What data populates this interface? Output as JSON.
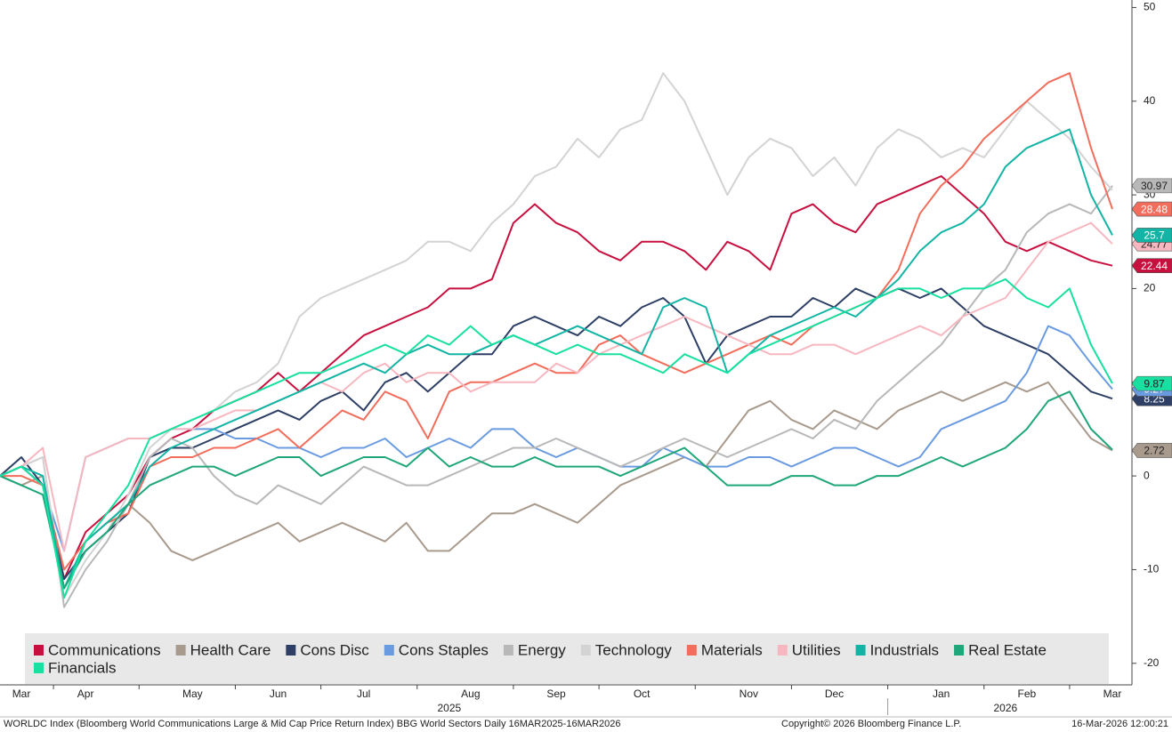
{
  "chart_data": {
    "type": "line",
    "categories": [
      null,
      "Mar",
      null,
      null,
      "Apr",
      null,
      null,
      null,
      null,
      "May",
      null,
      null,
      null,
      "Jun",
      null,
      null,
      null,
      "Jul",
      null,
      null,
      null,
      null,
      "Aug",
      null,
      null,
      null,
      "Sep",
      null,
      null,
      null,
      "Oct",
      null,
      null,
      null,
      null,
      "Nov",
      null,
      null,
      null,
      "Dec",
      null,
      null,
      null,
      null,
      "Jan",
      null,
      null,
      null,
      "Feb",
      null,
      null,
      null,
      "Mar"
    ],
    "year_labels": [
      "2025",
      "2026"
    ],
    "series": [
      {
        "name": "Communications",
        "color": "#c8103f",
        "end_label": true,
        "values": [
          0,
          1,
          -1,
          -11,
          -6,
          -4,
          -2,
          2,
          4,
          5,
          7,
          8,
          9,
          11,
          9,
          11,
          13,
          15,
          16,
          17,
          18,
          20,
          20,
          21,
          27,
          29,
          27,
          26,
          24,
          23,
          25,
          25,
          24,
          22,
          25,
          24,
          22,
          28,
          29,
          27,
          26,
          29,
          30,
          31,
          32,
          30,
          28,
          25,
          24,
          25,
          24,
          23,
          22.44
        ]
      },
      {
        "name": "Health Care",
        "color": "#a89a8c",
        "end_label": true,
        "values": [
          0,
          -1,
          0,
          -12,
          -7,
          -5,
          -3,
          -5,
          -8,
          -9,
          -8,
          -7,
          -6,
          -5,
          -7,
          -6,
          -5,
          -6,
          -7,
          -5,
          -8,
          -8,
          -6,
          -4,
          -4,
          -3,
          -4,
          -5,
          -3,
          -1,
          0,
          1,
          2,
          1,
          4,
          7,
          8,
          6,
          5,
          7,
          6,
          5,
          7,
          8,
          9,
          8,
          9,
          10,
          9,
          10,
          7,
          4,
          2.72
        ]
      },
      {
        "name": "Cons Disc",
        "color": "#2e3f66",
        "end_label": true,
        "values": [
          0,
          2,
          -1,
          -11,
          -8,
          -6,
          -4,
          2,
          3,
          3,
          4,
          5,
          6,
          7,
          6,
          8,
          9,
          7,
          10,
          11,
          9,
          11,
          13,
          13,
          16,
          17,
          16,
          15,
          17,
          16,
          18,
          19,
          17,
          12,
          15,
          16,
          17,
          17,
          19,
          18,
          20,
          19,
          20,
          19,
          20,
          18,
          16,
          15,
          14,
          13,
          11,
          9,
          8.25
        ]
      },
      {
        "name": "Cons Staples",
        "color": "#6a9be0",
        "end_label": true,
        "values": [
          0,
          1,
          -1,
          -8,
          2,
          3,
          4,
          4,
          5,
          5,
          5,
          4,
          4,
          3,
          3,
          2,
          3,
          3,
          4,
          2,
          3,
          4,
          3,
          5,
          5,
          3,
          2,
          3,
          2,
          1,
          1,
          3,
          2,
          1,
          1,
          2,
          2,
          1,
          2,
          3,
          3,
          2,
          1,
          2,
          5,
          6,
          7,
          8,
          11,
          16,
          15,
          12,
          9.27
        ]
      },
      {
        "name": "Energy",
        "color": "#b8b8b8",
        "end_label": true,
        "values": [
          0,
          1,
          2,
          -14,
          -10,
          -7,
          -3,
          2,
          4,
          3,
          0,
          -2,
          -3,
          -1,
          -2,
          -3,
          -1,
          1,
          0,
          -1,
          -1,
          0,
          1,
          2,
          3,
          3,
          4,
          3,
          2,
          1,
          2,
          3,
          4,
          3,
          2,
          3,
          4,
          5,
          4,
          6,
          5,
          8,
          10,
          12,
          14,
          17,
          20,
          22,
          26,
          28,
          29,
          28,
          30.97
        ]
      },
      {
        "name": "Technology",
        "color": "#d3d3d3",
        "end_label": false,
        "values": [
          0,
          1,
          2,
          -13,
          -9,
          -6,
          -2,
          3,
          5,
          6,
          7,
          9,
          10,
          12,
          17,
          19,
          20,
          21,
          22,
          23,
          25,
          25,
          24,
          27,
          29,
          32,
          33,
          36,
          34,
          37,
          38,
          43,
          40,
          35,
          30,
          34,
          36,
          35,
          32,
          34,
          31,
          35,
          37,
          36,
          34,
          35,
          34,
          37,
          40,
          38,
          36,
          33,
          30.5
        ]
      },
      {
        "name": "Materials",
        "color": "#f26d5b",
        "end_label": true,
        "values": [
          0,
          0,
          -1,
          -10,
          -7,
          -5,
          -4,
          1,
          2,
          2,
          3,
          3,
          4,
          5,
          3,
          5,
          7,
          6,
          9,
          8,
          4,
          9,
          10,
          10,
          11,
          12,
          11,
          11,
          14,
          15,
          13,
          12,
          11,
          12,
          13,
          14,
          15,
          14,
          16,
          17,
          18,
          19,
          22,
          28,
          31,
          33,
          36,
          38,
          40,
          42,
          43,
          35,
          28.48
        ]
      },
      {
        "name": "Utilities",
        "color": "#f7b7c0",
        "end_label": true,
        "values": [
          0,
          1,
          3,
          -8,
          2,
          3,
          4,
          4,
          5,
          5,
          6,
          7,
          7,
          8,
          9,
          10,
          9,
          11,
          12,
          10,
          11,
          11,
          9,
          10,
          10,
          10,
          12,
          11,
          13,
          14,
          15,
          16,
          17,
          16,
          15,
          14,
          13,
          13,
          14,
          14,
          13,
          14,
          15,
          16,
          15,
          17,
          18,
          19,
          22,
          25,
          26,
          27,
          24.77
        ]
      },
      {
        "name": "Industrials",
        "color": "#12b5a5",
        "end_label": true,
        "values": [
          0,
          1,
          0,
          -12,
          -7,
          -5,
          -3,
          1,
          3,
          4,
          5,
          6,
          7,
          8,
          9,
          10,
          11,
          12,
          11,
          13,
          14,
          13,
          13,
          14,
          15,
          14,
          15,
          16,
          15,
          14,
          13,
          18,
          19,
          18,
          11,
          13,
          15,
          16,
          17,
          18,
          17,
          19,
          21,
          24,
          26,
          27,
          29,
          33,
          35,
          36,
          37,
          30,
          25.7
        ]
      },
      {
        "name": "Real Estate",
        "color": "#1fa67a",
        "end_label": false,
        "values": [
          0,
          -1,
          -2,
          -12,
          -8,
          -6,
          -3,
          -1,
          0,
          1,
          1,
          0,
          1,
          2,
          2,
          0,
          1,
          2,
          2,
          1,
          3,
          1,
          2,
          1,
          1,
          2,
          1,
          1,
          1,
          0,
          1,
          2,
          3,
          1,
          -1,
          -1,
          -1,
          0,
          0,
          -1,
          -1,
          0,
          0,
          1,
          2,
          1,
          2,
          3,
          5,
          8,
          9,
          5,
          2.8
        ]
      },
      {
        "name": "Financials",
        "color": "#18e0a0",
        "end_label": true,
        "values": [
          0,
          1,
          -1,
          -13,
          -7,
          -4,
          -1,
          4,
          5,
          6,
          7,
          8,
          9,
          10,
          11,
          11,
          12,
          13,
          14,
          13,
          15,
          14,
          16,
          14,
          15,
          14,
          13,
          14,
          13,
          13,
          12,
          11,
          13,
          12,
          11,
          13,
          14,
          15,
          16,
          17,
          18,
          19,
          20,
          20,
          19,
          20,
          20,
          21,
          19,
          18,
          20,
          14,
          9.87
        ]
      }
    ],
    "ylim": [
      -22.3,
      50.8
    ],
    "yticks": [
      -20,
      -10,
      0,
      10,
      20,
      30,
      40,
      50
    ],
    "grid": false,
    "legend": "bottom-left",
    "footer_left": "WORLDC Index (Bloomberg World Communications Large & Mid Cap Price Return Index) BBG World Sectors Daily 16MAR2025-16MAR2026",
    "footer_center": "Copyright© 2026 Bloomberg Finance L.P.",
    "footer_right": "16-Mar-2026 12:00:21"
  }
}
